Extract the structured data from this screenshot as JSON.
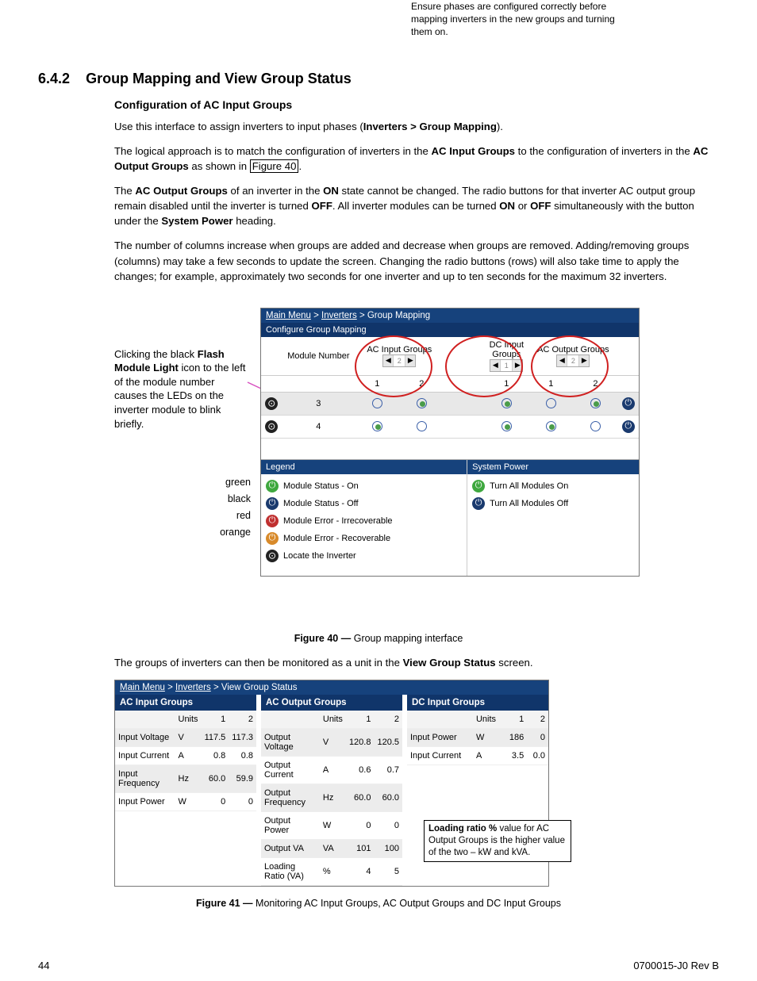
{
  "top_note": "Ensure phases are configured correctly before mapping inverters in the new groups and turning them on.",
  "section": {
    "number": "6.4.2",
    "title": "Group Mapping and View Group Status"
  },
  "subheading": "Configuration of AC Input Groups",
  "para1_a": "Use this interface to assign inverters to input phases (",
  "para1_b": "Inverters > Group Mapping",
  "para1_c": ").",
  "para2_a": "The logical approach is to match the configuration of inverters in the ",
  "para2_b": "AC Input Groups",
  "para2_c": " to the configuration of inverters in the ",
  "para2_d": "AC Output Groups",
  "para2_e": " as shown in ",
  "para2_f": "Figure 40",
  "para2_g": ".",
  "para3_a": "The ",
  "para3_b": "AC Output Groups",
  "para3_c": " of an inverter in the ",
  "para3_d": "ON",
  "para3_e": " state cannot be changed. The radio buttons for that inverter AC output group remain disabled until the inverter is turned ",
  "para3_f": "OFF",
  "para3_g": ". All inverter modules can be turned ",
  "para3_h": "ON",
  "para3_i": " or ",
  "para3_j": "OFF",
  "para3_k": " simultaneously with the button under the ",
  "para3_l": "System Power",
  "para3_m": " heading.",
  "para4": "The number of columns increase when groups are added and decrease when groups are removed. Adding/removing groups (columns) may take a few seconds to update the screen. Changing the radio buttons (rows) will also take time to apply the changes; for example, approximately two seconds for one inverter and up to ten seconds for the maximum 32 inverters.",
  "callout_a": "Clicking the black ",
  "callout_b": "Flash Module Light",
  "callout_c": " icon to the left of the module number causes the LEDs on the inverter module to blink briefly.",
  "color_labels": [
    "green",
    "black",
    "red",
    "orange"
  ],
  "gm": {
    "breadcrumb": [
      "Main Menu",
      "Inverters",
      "Group Mapping"
    ],
    "subbar": "Configure Group Mapping",
    "headers": {
      "module": "Module Number",
      "ac_in": "AC Input Groups",
      "dc_in": "DC Input Groups",
      "ac_out": "AC Output Groups"
    },
    "spinner_vals": {
      "ac_in": "2",
      "dc_in": "1",
      "ac_out": "2"
    },
    "subcols": {
      "ac_in": [
        "1",
        "2"
      ],
      "dc_in": [
        "1"
      ],
      "ac_out": [
        "1",
        "2"
      ]
    },
    "rows": [
      {
        "module": "3",
        "ac_in": [
          false,
          true
        ],
        "dc_in": [
          true
        ],
        "ac_out": [
          false,
          true
        ]
      },
      {
        "module": "4",
        "ac_in": [
          true,
          false
        ],
        "dc_in": [
          true
        ],
        "ac_out": [
          true,
          false
        ]
      }
    ],
    "legend": {
      "title": "Legend",
      "items": [
        {
          "color": "green",
          "label": "Module Status - On"
        },
        {
          "color": "darkblue",
          "label": "Module Status - Off"
        },
        {
          "color": "red",
          "label": "Module Error - Irrecoverable"
        },
        {
          "color": "orange",
          "label": "Module Error - Recoverable"
        },
        {
          "color": "black",
          "label": "Locate the Inverter",
          "locate": true
        }
      ]
    },
    "syspower": {
      "title": "System Power",
      "on": "Turn All Modules On",
      "off": "Turn All Modules Off"
    }
  },
  "fig40_caption_a": "Figure 40  —  ",
  "fig40_caption_b": "Group mapping interface",
  "para5_a": "The groups of inverters can then be monitored as a unit in the ",
  "para5_b": "View Group Status",
  "para5_c": " screen.",
  "vgs": {
    "breadcrumb": [
      "Main Menu",
      "Inverters",
      "View Group Status"
    ],
    "panels": [
      {
        "title": "AC Input Groups",
        "cols": [
          "",
          "Units",
          "1",
          "2"
        ],
        "rows": [
          [
            "Input Voltage",
            "V",
            "117.5",
            "117.3"
          ],
          [
            "Input Current",
            "A",
            "0.8",
            "0.8"
          ],
          [
            "Input Frequency",
            "Hz",
            "60.0",
            "59.9"
          ],
          [
            "Input Power",
            "W",
            "0",
            "0"
          ]
        ]
      },
      {
        "title": "AC Output Groups",
        "cols": [
          "",
          "Units",
          "1",
          "2"
        ],
        "rows": [
          [
            "Output Voltage",
            "V",
            "120.8",
            "120.5"
          ],
          [
            "Output Current",
            "A",
            "0.6",
            "0.7"
          ],
          [
            "Output Frequency",
            "Hz",
            "60.0",
            "60.0"
          ],
          [
            "Output Power",
            "W",
            "0",
            "0"
          ],
          [
            "Output VA",
            "VA",
            "101",
            "100"
          ],
          [
            "Loading Ratio (VA)",
            "%",
            "4",
            "5"
          ]
        ]
      },
      {
        "title": "DC Input Groups",
        "cols": [
          "",
          "Units",
          "1",
          "2"
        ],
        "rows": [
          [
            "Input Power",
            "W",
            "186",
            "0"
          ],
          [
            "Input Current",
            "A",
            "3.5",
            "0.0"
          ]
        ]
      }
    ]
  },
  "vgs_callout_a": "Loading ratio %",
  "vgs_callout_b": " value for AC Output Groups is the higher value of the two – kW and kVA.",
  "fig41_caption_a": "Figure 41  —  ",
  "fig41_caption_b": "Monitoring AC Input Groups, AC Output Groups and DC Input Groups",
  "footer": {
    "page": "44",
    "doc": "0700015-J0    Rev B"
  },
  "colors": {
    "header_bg": "#16427c",
    "subheader_bg": "#10356a",
    "red_circle": "#d02020",
    "arrow": "#d850c0"
  }
}
